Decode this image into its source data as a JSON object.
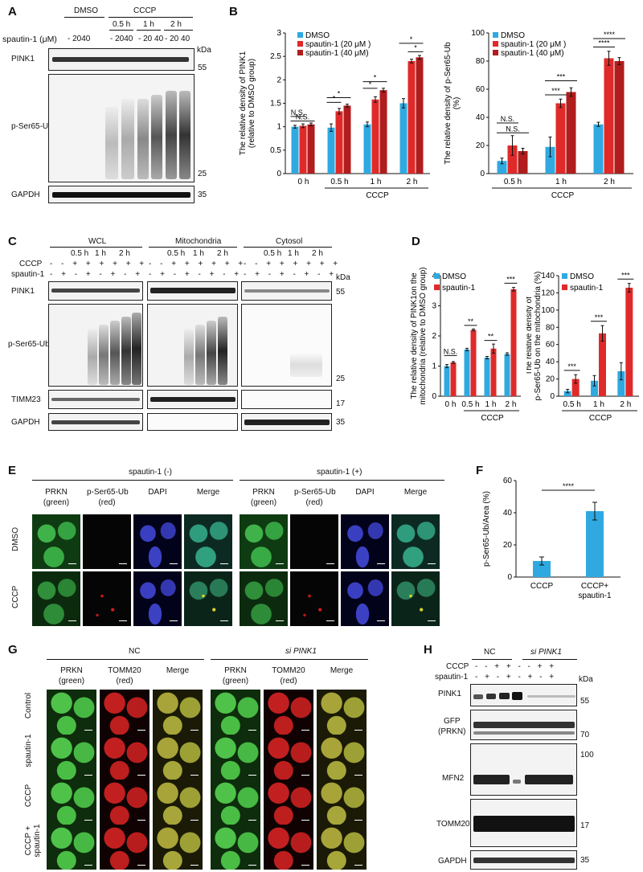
{
  "panels": [
    "A",
    "B",
    "C",
    "D",
    "E",
    "F",
    "G",
    "H"
  ],
  "colors": {
    "dmso": "#2fa9e0",
    "spautin20": "#e02a2a",
    "spautin40": "#b11c1c",
    "spautin": "#e02a2a"
  },
  "A": {
    "dmso_label": "DMSO",
    "cccp_label": "CCCP",
    "times": [
      "0.5 h",
      "1 h",
      "2 h"
    ],
    "spautin_label": "spautin-1 (μM)",
    "dose_dmso": "- 2040",
    "dose_t1": "- 2040",
    "dose_t2": "- 20 40",
    "dose_t3": "- 20 40",
    "kda": "kDa",
    "blots": [
      "PINK1",
      "p-Ser65-Ub",
      "GAPDH"
    ],
    "markers": [
      "55",
      "25",
      "35"
    ]
  },
  "B1": {
    "ylabel1": "The relative density of PINK1",
    "ylabel2": "(relative to DMSO group)",
    "legend": [
      "DMSO",
      "spautin-1 (20 μM )",
      "spautin-1 (40 μM)"
    ],
    "xcats": [
      "0 h",
      "0.5 h",
      "1 h",
      "2 h"
    ],
    "xgroup": "CCCP",
    "yticks": [
      "0",
      "0.5",
      "1",
      "1.5",
      "2",
      "2.5",
      "3"
    ],
    "sig": [
      "N.S.",
      "N.S.",
      "*",
      "*",
      "*",
      "*",
      "*",
      "*"
    ]
  },
  "B2": {
    "ylabel1": "The relative density of p-Ser65-Ub",
    "ylabel2": "(%)",
    "legend": [
      "DMSO",
      "spautin-1 (20 μM )",
      "spautin-1 (40 μM)"
    ],
    "xcats": [
      "0.5 h",
      "1 h",
      "2 h"
    ],
    "xgroup": "CCCP",
    "yticks": [
      "0",
      "20",
      "40",
      "60",
      "80",
      "100"
    ],
    "sig": [
      "N.S.",
      "N.S.",
      "***",
      "***",
      "****",
      "****"
    ]
  },
  "C": {
    "groups": [
      "WCL",
      "Mitochondria",
      "Cytosol"
    ],
    "times": [
      "0.5 h",
      "1 h",
      "2 h"
    ],
    "row_cccp": "CCCP",
    "row_spautin": "spautin-1",
    "cccp_signs": "- - + + + + + +",
    "spautin_signs": "- + - + - + - +",
    "kda": "kDa",
    "blots": [
      "PINK1",
      "p-Ser65-Ub",
      "TIMM23",
      "GAPDH"
    ],
    "markers": [
      "55",
      "25",
      "17",
      "35"
    ]
  },
  "D1": {
    "ylabel1": "The relative density of PINK1on the",
    "ylabel2": "mitochondria (relative to DMSO group)",
    "legend": [
      "DMSO",
      "spautin-1"
    ],
    "xcats": [
      "0 h",
      "0.5 h",
      "1 h",
      "2 h"
    ],
    "xgroup": "CCCP",
    "yticks": [
      "0",
      "1",
      "2",
      "3",
      "4"
    ],
    "sig": [
      "N.S.",
      "**",
      "**",
      "***"
    ]
  },
  "D2": {
    "ylabel1": "The relative density of",
    "ylabel2": "p-Ser65-Ub on the mitochondria (%)",
    "legend": [
      "DMSO",
      "spautin-1"
    ],
    "xcats": [
      "0.5 h",
      "1 h",
      "2 h"
    ],
    "xgroup": "CCCP",
    "yticks": [
      "0",
      "20",
      "40",
      "60",
      "80",
      "100",
      "120",
      "140"
    ],
    "sig": [
      "***",
      "***",
      "***"
    ]
  },
  "E": {
    "group1": "spautin-1 (-)",
    "group2": "spautin-1 (+)",
    "cols": [
      [
        "PRKN",
        "(green)"
      ],
      [
        "p-Ser65-Ub",
        "(red)"
      ],
      [
        "DAPI",
        ""
      ],
      [
        "Merge",
        ""
      ]
    ],
    "rows": [
      "DMSO",
      "CCCP"
    ]
  },
  "F": {
    "ylabel": "p-Ser65-Ub/Area (%)",
    "yticks": [
      "0",
      "20",
      "40",
      "60"
    ],
    "categories": [
      "CCCP",
      "CCCP+ spautin-1"
    ],
    "sig": "****"
  },
  "G": {
    "group1": "NC",
    "group2": "si PINK1",
    "cols": [
      [
        "PRKN",
        "(green)"
      ],
      [
        "TOMM20",
        "(red)"
      ],
      [
        "Merge",
        ""
      ]
    ],
    "rows": [
      "Control",
      "spautin-1",
      "CCCP",
      "CCCP + spautin-1"
    ]
  },
  "H": {
    "group1": "NC",
    "group2": "si PINK1",
    "row_cccp": "CCCP",
    "row_spautin": "spautin-1",
    "cccp_signs": "- - + +   - - + +",
    "spautin_signs": "- + - +   - + - +",
    "kda": "kDa",
    "blots": [
      "PINK1",
      "GFP (PRKN)",
      "MFN2",
      "TOMM20",
      "GAPDH"
    ],
    "markers": [
      "55",
      "70",
      "100",
      "17",
      "35"
    ]
  },
  "chart_data": [
    {
      "type": "bar",
      "panel": "B-left",
      "categories": [
        "0 h",
        "0.5 h",
        "1 h",
        "2 h"
      ],
      "series": [
        {
          "name": "DMSO",
          "values": [
            1.0,
            0.98,
            1.05,
            1.5
          ],
          "errors": [
            0.03,
            0.08,
            0.05,
            0.1
          ]
        },
        {
          "name": "spautin-1 (20 μM )",
          "values": [
            1.02,
            1.33,
            1.58,
            2.4
          ],
          "errors": [
            0.04,
            0.06,
            0.06,
            0.04
          ]
        },
        {
          "name": "spautin-1 (40 μM)",
          "values": [
            1.05,
            1.45,
            1.78,
            2.48
          ],
          "errors": [
            0.03,
            0.03,
            0.04,
            0.04
          ]
        }
      ],
      "ylabel": "The relative density of PINK1 (relative to DMSO group)",
      "ylim": [
        0,
        3
      ],
      "legend": "top-left"
    },
    {
      "type": "bar",
      "panel": "B-right",
      "categories": [
        "0.5 h",
        "1 h",
        "2 h"
      ],
      "series": [
        {
          "name": "DMSO",
          "values": [
            9,
            19,
            35
          ],
          "errors": [
            2,
            7,
            1.5
          ]
        },
        {
          "name": "spautin-1 (20 μM )",
          "values": [
            20,
            50,
            82
          ],
          "errors": [
            7,
            3,
            5
          ]
        },
        {
          "name": "spautin-1 (40 μM)",
          "values": [
            16,
            58,
            80
          ],
          "errors": [
            2,
            3,
            2.5
          ]
        }
      ],
      "ylabel": "The relative density of p-Ser65-Ub (%)",
      "ylim": [
        0,
        100
      ],
      "legend": "top-left"
    },
    {
      "type": "bar",
      "panel": "D-left",
      "categories": [
        "0 h",
        "0.5 h",
        "1 h",
        "2 h"
      ],
      "series": [
        {
          "name": "DMSO",
          "values": [
            1.0,
            1.55,
            1.28,
            1.4
          ],
          "errors": [
            0.05,
            0.04,
            0.04,
            0.04
          ]
        },
        {
          "name": "spautin-1",
          "values": [
            1.12,
            2.2,
            1.58,
            3.55
          ],
          "errors": [
            0.03,
            0.03,
            0.15,
            0.06
          ]
        }
      ],
      "ylabel": "The relative density of PINK1on the mitochondria (relative to DMSO group)",
      "ylim": [
        0,
        4
      ],
      "legend": "top-left"
    },
    {
      "type": "bar",
      "panel": "D-right",
      "categories": [
        "0.5 h",
        "1 h",
        "2 h"
      ],
      "series": [
        {
          "name": "DMSO",
          "values": [
            6,
            18,
            29
          ],
          "errors": [
            2,
            6,
            10
          ]
        },
        {
          "name": "spautin-1",
          "values": [
            20,
            73,
            126
          ],
          "errors": [
            5,
            9,
            5
          ]
        }
      ],
      "ylabel": "The relative density of p-Ser65-Ub on the mitochondria (%)",
      "ylim": [
        0,
        140
      ],
      "legend": "top-left"
    },
    {
      "type": "bar",
      "panel": "F",
      "categories": [
        "CCCP",
        "CCCP+ spautin-1"
      ],
      "values": [
        10,
        41
      ],
      "errors": [
        2.5,
        5.5
      ],
      "ylabel": "p-Ser65-Ub/Area (%)",
      "ylim": [
        0,
        60
      ]
    }
  ]
}
